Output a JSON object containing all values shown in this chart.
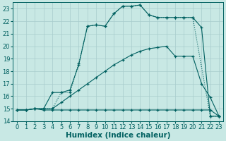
{
  "xlabel": "Humidex (Indice chaleur)",
  "xlim": [
    -0.5,
    23.5
  ],
  "ylim": [
    14,
    23.5
  ],
  "yticks": [
    14,
    15,
    16,
    17,
    18,
    19,
    20,
    21,
    22,
    23
  ],
  "xticks": [
    0,
    1,
    2,
    3,
    4,
    5,
    6,
    7,
    8,
    9,
    10,
    11,
    12,
    13,
    14,
    15,
    16,
    17,
    18,
    19,
    20,
    21,
    22,
    23
  ],
  "bg_color": "#c8e8e4",
  "grid_color": "#a8cccc",
  "line_color": "#006060",
  "line1_x": [
    0,
    1,
    2,
    3,
    4,
    5,
    6,
    7,
    8,
    9,
    10,
    11,
    12,
    13,
    14,
    15,
    16,
    17,
    18,
    19,
    20,
    21,
    22,
    23
  ],
  "line1_y": [
    14.9,
    14.9,
    15.0,
    14.9,
    14.9,
    14.9,
    14.9,
    14.9,
    14.9,
    14.9,
    14.9,
    14.9,
    14.9,
    14.9,
    14.9,
    14.9,
    14.9,
    14.9,
    14.9,
    14.9,
    14.9,
    14.9,
    14.9,
    14.4
  ],
  "line2_x": [
    0,
    1,
    2,
    3,
    4,
    5,
    6,
    7,
    8,
    9,
    10,
    11,
    12,
    13,
    14,
    15,
    16,
    17,
    18,
    19,
    20,
    21,
    22,
    23
  ],
  "line2_y": [
    14.9,
    14.9,
    15.0,
    15.0,
    15.0,
    15.5,
    16.0,
    16.5,
    17.0,
    17.5,
    18.0,
    18.5,
    18.9,
    19.3,
    19.6,
    19.8,
    19.9,
    20.0,
    19.2,
    19.2,
    19.2,
    17.0,
    15.9,
    14.4
  ],
  "line3_x": [
    0,
    1,
    2,
    3,
    4,
    5,
    6,
    7,
    8,
    9,
    10,
    11,
    12,
    13,
    14,
    15,
    16,
    17,
    18,
    19,
    20,
    21,
    22,
    23
  ],
  "line3_y": [
    14.9,
    14.9,
    15.0,
    15.0,
    16.3,
    16.3,
    16.5,
    18.5,
    21.6,
    21.7,
    21.6,
    22.6,
    23.2,
    23.2,
    23.3,
    22.5,
    22.3,
    22.3,
    22.3,
    22.3,
    22.3,
    21.5,
    14.4,
    14.4
  ],
  "line4_x": [
    2,
    3,
    4,
    5,
    6,
    7,
    8,
    9,
    10,
    11,
    12,
    13,
    14,
    15,
    16,
    17,
    18,
    19,
    20,
    22,
    23
  ],
  "line4_y": [
    15.0,
    15.0,
    15.0,
    16.3,
    16.3,
    18.6,
    21.6,
    21.7,
    21.6,
    22.6,
    23.2,
    23.2,
    23.3,
    22.5,
    22.3,
    22.3,
    22.3,
    22.3,
    22.3,
    14.4,
    14.4
  ],
  "fontsize_label": 7.5,
  "fontsize_tick": 6.0,
  "marker": "+"
}
